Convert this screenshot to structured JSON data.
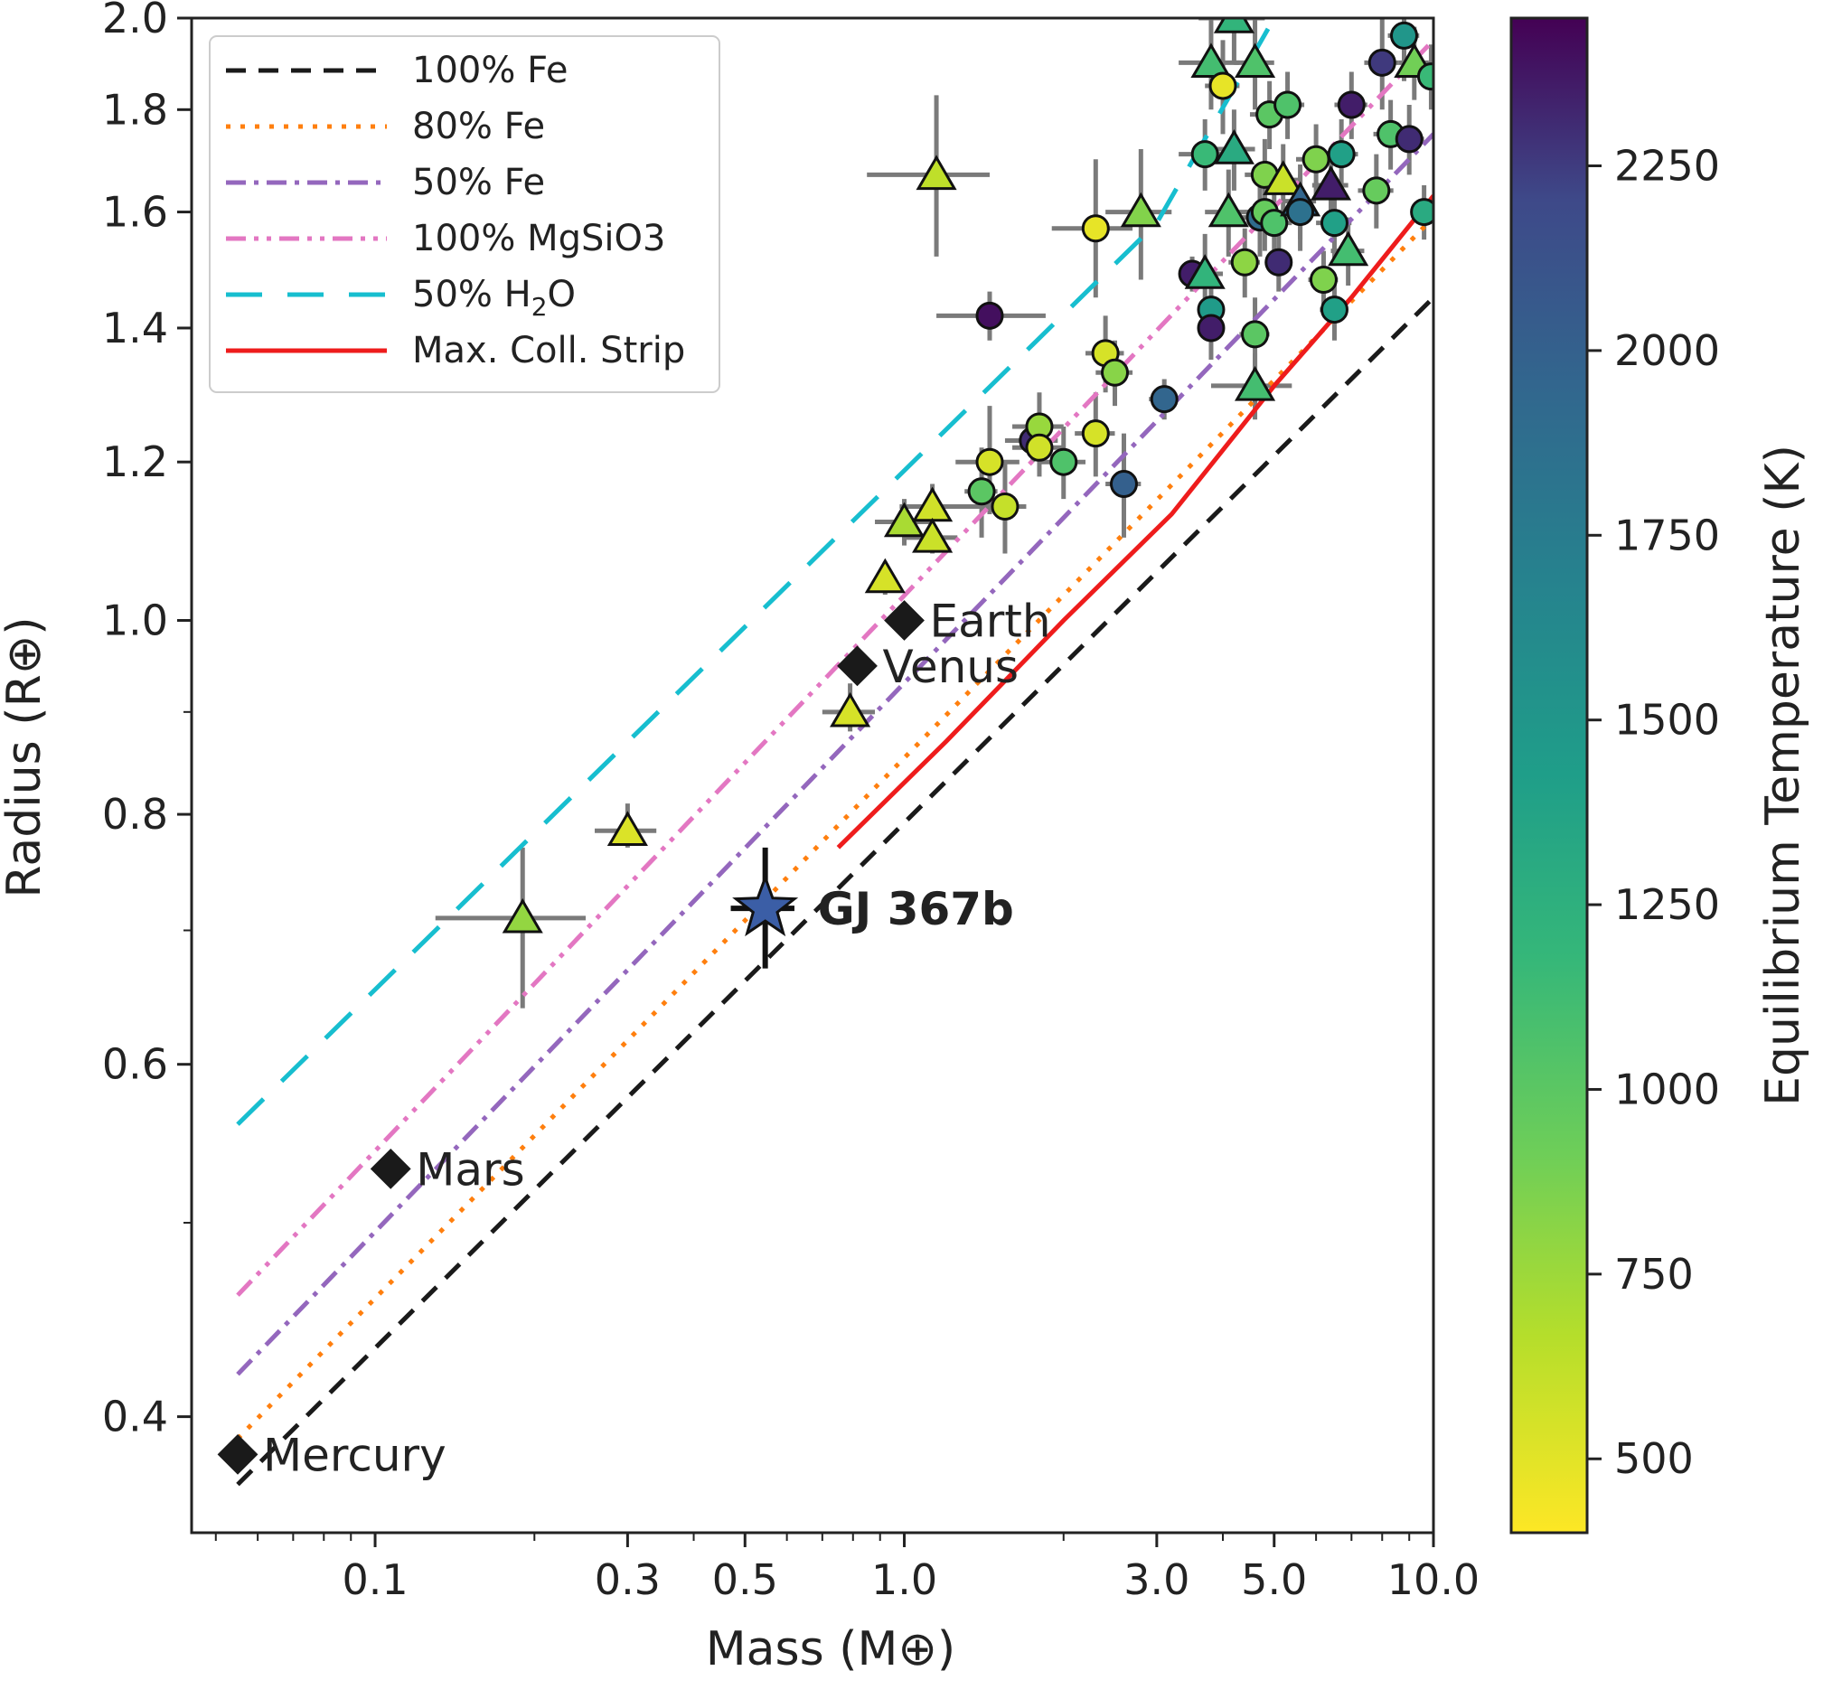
{
  "chart_data": {
    "type": "scatter",
    "xlabel": "Mass (M⊕)",
    "ylabel": "Radius (R⊕)",
    "colorbar_label": "Equilibrium Temperature (K)",
    "x_scale": "log",
    "y_scale": "log",
    "xlim": [
      0.045,
      10.0
    ],
    "ylim": [
      0.35,
      2.0
    ],
    "x_ticks": [
      0.1,
      0.3,
      0.5,
      1.0,
      3.0,
      5.0,
      10.0
    ],
    "x_tick_labels": [
      "0.1",
      "0.3",
      "0.5",
      "1.0",
      "3.0",
      "5.0",
      "10.0"
    ],
    "y_ticks": [
      0.4,
      0.6,
      0.8,
      1.0,
      1.2,
      1.4,
      1.6,
      1.8,
      2.0
    ],
    "y_tick_labels": [
      "0.4",
      "0.6",
      "0.8",
      "1.0",
      "1.2",
      "1.4",
      "1.6",
      "1.8",
      "2.0"
    ],
    "colorbar_range": [
      400,
      2450
    ],
    "colorbar_ticks": [
      500,
      750,
      1000,
      1250,
      1500,
      1750,
      2000,
      2250
    ],
    "colorbar_tick_labels": [
      "500",
      "750",
      "1000",
      "1250",
      "1500",
      "1750",
      "2000",
      "2250"
    ],
    "legend_position": "top-left",
    "grid": false,
    "curves": [
      {
        "name": "100% Fe",
        "color": "#1a1a1a",
        "dash": "22,14",
        "width": 5,
        "points": [
          [
            0.055,
            0.37
          ],
          [
            10,
            1.45
          ]
        ]
      },
      {
        "name": "80% Fe",
        "color": "#ff7f0e",
        "dash": "5,11",
        "width": 5,
        "points": [
          [
            0.055,
            0.39
          ],
          [
            10,
            1.59
          ]
        ]
      },
      {
        "name": "50% Fe",
        "color": "#9467bd",
        "dash": "22,9,5,9",
        "width": 5,
        "points": [
          [
            0.055,
            0.42
          ],
          [
            10,
            1.75
          ]
        ]
      },
      {
        "name": "100% MgSiO3",
        "color": "#e377c2",
        "dash": "22,9,5,9,5,9",
        "width": 5,
        "points": [
          [
            0.055,
            0.46
          ],
          [
            10,
            1.95
          ]
        ]
      },
      {
        "name": "50% H₂O",
        "color": "#17becf",
        "dash": "40,28",
        "width": 5,
        "points": [
          [
            0.055,
            0.56
          ],
          [
            3,
            1.58
          ],
          [
            5,
            2.0
          ]
        ]
      },
      {
        "name": "Max. Coll. Strip",
        "color": "#ee1c1c",
        "dash": "",
        "width": 5,
        "points": [
          [
            0.75,
            0.77
          ],
          [
            1.2,
            0.87
          ],
          [
            2,
            1.0
          ],
          [
            3.2,
            1.13
          ],
          [
            5,
            1.31
          ],
          [
            7,
            1.45
          ],
          [
            10,
            1.63
          ]
        ]
      }
    ],
    "legend_entries": [
      {
        "label": "100% Fe"
      },
      {
        "label": "80% Fe"
      },
      {
        "label": "50% Fe"
      },
      {
        "label": "100% MgSiO3"
      },
      {
        "label_main": "50% H",
        "label_sub": "2",
        "label_tail": "O"
      },
      {
        "label": "Max. Coll. Strip"
      }
    ],
    "solar_planets": [
      {
        "name": "Mercury",
        "mass": 0.055,
        "radius": 0.383
      },
      {
        "name": "Mars",
        "mass": 0.107,
        "radius": 0.532
      },
      {
        "name": "Venus",
        "mass": 0.815,
        "radius": 0.949
      },
      {
        "name": "Earth",
        "mass": 1.0,
        "radius": 1.0
      }
    ],
    "highlight": {
      "name": "GJ 367b",
      "mass": 0.546,
      "radius": 0.718,
      "mass_err": [
        0.47,
        0.62
      ],
      "radius_err": [
        0.67,
        0.77
      ],
      "color": "#3b5ea6"
    },
    "exoplanets": [
      {
        "mass": 0.19,
        "radius": 0.71,
        "teq": 780,
        "marker": "triangle",
        "mass_err": [
          0.13,
          0.25
        ],
        "radius_err": [
          0.64,
          0.77
        ]
      },
      {
        "mass": 0.3,
        "radius": 0.785,
        "teq": 520,
        "marker": "triangle",
        "mass_err": [
          0.26,
          0.34
        ],
        "radius_err": [
          0.77,
          0.81
        ]
      },
      {
        "mass": 0.79,
        "radius": 0.9,
        "teq": 540,
        "marker": "triangle",
        "mass_err": [
          0.7,
          0.88
        ],
        "radius_err": [
          0.88,
          0.93
        ]
      },
      {
        "mass": 0.92,
        "radius": 1.05,
        "teq": 540,
        "marker": "triangle",
        "mass_err": [
          0.88,
          0.96
        ],
        "radius_err": [
          1.03,
          1.07
        ]
      },
      {
        "mass": 1.0,
        "radius": 1.12,
        "teq": 700,
        "marker": "triangle",
        "mass_err": [
          0.88,
          1.12
        ],
        "radius_err": [
          1.09,
          1.15
        ]
      },
      {
        "mass": 1.13,
        "radius": 1.14,
        "teq": 560,
        "marker": "triangle",
        "mass_err": [
          0.98,
          1.4
        ],
        "radius_err": [
          1.11,
          1.17
        ]
      },
      {
        "mass": 1.13,
        "radius": 1.1,
        "teq": 580,
        "marker": "triangle",
        "mass_err": [
          1.0,
          1.26
        ],
        "radius_err": [
          1.08,
          1.12
        ]
      },
      {
        "mass": 1.15,
        "radius": 1.67,
        "teq": 620,
        "marker": "triangle",
        "mass_err": [
          0.85,
          1.45
        ],
        "radius_err": [
          1.52,
          1.83
        ]
      },
      {
        "mass": 1.45,
        "radius": 1.42,
        "teq": 2400,
        "marker": "circle",
        "mass_err": [
          1.15,
          1.85
        ],
        "radius_err": [
          1.38,
          1.46
        ]
      },
      {
        "mass": 1.4,
        "radius": 1.16,
        "teq": 1000,
        "marker": "circle",
        "mass_err": [
          1.3,
          1.5
        ],
        "radius_err": [
          1.1,
          1.22
        ]
      },
      {
        "mass": 1.45,
        "radius": 1.2,
        "teq": 540,
        "marker": "circle",
        "mass_err": [
          1.25,
          1.65
        ],
        "radius_err": [
          1.13,
          1.28
        ]
      },
      {
        "mass": 1.55,
        "radius": 1.14,
        "teq": 600,
        "marker": "circle",
        "mass_err": [
          1.4,
          1.7
        ],
        "radius_err": [
          1.08,
          1.2
        ]
      },
      {
        "mass": 1.75,
        "radius": 1.23,
        "teq": 2300,
        "marker": "circle",
        "mass_err": [
          1.55,
          1.95
        ],
        "radius_err": [
          1.2,
          1.26
        ]
      },
      {
        "mass": 1.8,
        "radius": 1.25,
        "teq": 760,
        "marker": "circle",
        "mass_err": [
          1.6,
          2.0
        ],
        "radius_err": [
          1.2,
          1.3
        ]
      },
      {
        "mass": 1.8,
        "radius": 1.22,
        "teq": 560,
        "marker": "circle",
        "mass_err": [
          1.6,
          2.0
        ],
        "radius_err": [
          1.18,
          1.26
        ]
      },
      {
        "mass": 2.0,
        "radius": 1.2,
        "teq": 1050,
        "marker": "circle",
        "mass_err": [
          1.8,
          2.2
        ],
        "radius_err": [
          1.15,
          1.25
        ]
      },
      {
        "mass": 2.3,
        "radius": 1.24,
        "teq": 540,
        "marker": "circle",
        "mass_err": [
          2.1,
          2.5
        ],
        "radius_err": [
          1.18,
          1.3
        ]
      },
      {
        "mass": 2.4,
        "radius": 1.36,
        "teq": 540,
        "marker": "circle",
        "mass_err": [
          2.2,
          2.6
        ],
        "radius_err": [
          1.3,
          1.42
        ]
      },
      {
        "mass": 2.5,
        "radius": 1.33,
        "teq": 820,
        "marker": "circle",
        "mass_err": [
          2.3,
          2.7
        ],
        "radius_err": [
          1.28,
          1.38
        ]
      },
      {
        "mass": 2.3,
        "radius": 1.57,
        "teq": 480,
        "marker": "circle",
        "mass_err": [
          1.9,
          2.7
        ],
        "radius_err": [
          1.45,
          1.7
        ]
      },
      {
        "mass": 2.6,
        "radius": 1.17,
        "teq": 2000,
        "marker": "circle",
        "mass_err": [
          2.4,
          2.8
        ],
        "radius_err": [
          1.1,
          1.24
        ]
      },
      {
        "mass": 2.8,
        "radius": 1.6,
        "teq": 840,
        "marker": "triangle",
        "mass_err": [
          2.4,
          3.2
        ],
        "radius_err": [
          1.48,
          1.72
        ]
      },
      {
        "mass": 3.1,
        "radius": 1.29,
        "teq": 1950,
        "marker": "circle",
        "mass_err": [
          2.9,
          3.3
        ],
        "radius_err": [
          1.26,
          1.32
        ]
      },
      {
        "mass": 3.5,
        "radius": 1.49,
        "teq": 2350,
        "marker": "circle",
        "mass_err": [
          3.3,
          3.7
        ],
        "radius_err": [
          1.46,
          1.52
        ]
      },
      {
        "mass": 3.7,
        "radius": 1.71,
        "teq": 1150,
        "marker": "circle",
        "mass_err": [
          3.3,
          4.1
        ],
        "radius_err": [
          1.64,
          1.78
        ]
      },
      {
        "mass": 3.7,
        "radius": 1.49,
        "teq": 1200,
        "marker": "triangle",
        "mass_err": [
          3.4,
          4.0
        ],
        "radius_err": [
          1.42,
          1.56
        ]
      },
      {
        "mass": 3.8,
        "radius": 1.43,
        "teq": 1450,
        "marker": "circle",
        "mass_err": [
          3.6,
          4.0
        ],
        "radius_err": [
          1.38,
          1.48
        ]
      },
      {
        "mass": 3.8,
        "radius": 1.4,
        "teq": 2350,
        "marker": "circle",
        "mass_err": [
          3.6,
          4.0
        ],
        "radius_err": [
          1.35,
          1.45
        ]
      },
      {
        "mass": 3.8,
        "radius": 1.9,
        "teq": 1100,
        "marker": "triangle",
        "mass_err": [
          3.3,
          4.3
        ],
        "radius_err": [
          1.8,
          2.0
        ]
      },
      {
        "mass": 4.0,
        "radius": 1.85,
        "teq": 480,
        "marker": "circle",
        "mass_err": [
          3.7,
          4.3
        ],
        "radius_err": [
          1.75,
          1.95
        ]
      },
      {
        "mass": 4.1,
        "radius": 1.6,
        "teq": 1050,
        "marker": "triangle",
        "mass_err": [
          3.7,
          4.5
        ],
        "radius_err": [
          1.52,
          1.68
        ]
      },
      {
        "mass": 4.2,
        "radius": 1.72,
        "teq": 1300,
        "marker": "triangle",
        "mass_err": [
          3.8,
          4.6
        ],
        "radius_err": [
          1.64,
          1.8
        ]
      },
      {
        "mass": 4.2,
        "radius": 2.0,
        "teq": 1200,
        "marker": "triangle",
        "mass_err": [
          3.6,
          4.8
        ],
        "radius_err": [
          1.9,
          2.0
        ]
      },
      {
        "mass": 4.4,
        "radius": 1.51,
        "teq": 800,
        "marker": "circle",
        "mass_err": [
          4.1,
          4.7
        ],
        "radius_err": [
          1.45,
          1.57
        ]
      },
      {
        "mass": 4.6,
        "radius": 1.9,
        "teq": 1050,
        "marker": "triangle",
        "mass_err": [
          4.2,
          5.0
        ],
        "radius_err": [
          1.8,
          2.0
        ]
      },
      {
        "mass": 4.6,
        "radius": 1.39,
        "teq": 1000,
        "marker": "circle",
        "mass_err": [
          4.3,
          4.9
        ],
        "radius_err": [
          1.33,
          1.45
        ]
      },
      {
        "mass": 4.6,
        "radius": 1.31,
        "teq": 1100,
        "marker": "triangle",
        "mass_err": [
          3.8,
          5.4
        ],
        "radius_err": [
          1.26,
          1.36
        ]
      },
      {
        "mass": 4.7,
        "radius": 1.59,
        "teq": 1900,
        "marker": "circle",
        "mass_err": [
          4.3,
          5.1
        ],
        "radius_err": [
          1.52,
          1.66
        ]
      },
      {
        "mass": 4.8,
        "radius": 1.67,
        "teq": 850,
        "marker": "circle",
        "mass_err": [
          4.4,
          5.2
        ],
        "radius_err": [
          1.6,
          1.74
        ]
      },
      {
        "mass": 4.8,
        "radius": 1.6,
        "teq": 950,
        "marker": "circle",
        "mass_err": [
          4.4,
          5.2
        ],
        "radius_err": [
          1.53,
          1.67
        ]
      },
      {
        "mass": 4.9,
        "radius": 1.79,
        "teq": 1000,
        "marker": "circle",
        "mass_err": [
          4.5,
          5.3
        ],
        "radius_err": [
          1.72,
          1.86
        ]
      },
      {
        "mass": 5.0,
        "radius": 1.58,
        "teq": 1050,
        "marker": "circle",
        "mass_err": [
          4.6,
          5.4
        ],
        "radius_err": [
          1.51,
          1.65
        ]
      },
      {
        "mass": 5.1,
        "radius": 1.51,
        "teq": 2300,
        "marker": "circle",
        "mass_err": [
          4.8,
          5.4
        ],
        "radius_err": [
          1.46,
          1.56
        ]
      },
      {
        "mass": 5.2,
        "radius": 1.66,
        "teq": 580,
        "marker": "triangle",
        "mass_err": [
          4.8,
          5.6
        ],
        "radius_err": [
          1.59,
          1.73
        ]
      },
      {
        "mass": 5.3,
        "radius": 1.81,
        "teq": 1050,
        "marker": "circle",
        "mass_err": [
          4.9,
          5.7
        ],
        "radius_err": [
          1.74,
          1.88
        ]
      },
      {
        "mass": 5.6,
        "radius": 1.62,
        "teq": 1950,
        "marker": "triangle",
        "mass_err": [
          5.2,
          6.0
        ],
        "radius_err": [
          1.55,
          1.69
        ]
      },
      {
        "mass": 5.6,
        "radius": 1.6,
        "teq": 1850,
        "marker": "circle",
        "mass_err": [
          5.2,
          6.0
        ],
        "radius_err": [
          1.53,
          1.67
        ]
      },
      {
        "mass": 6.0,
        "radius": 1.7,
        "teq": 850,
        "marker": "circle",
        "mass_err": [
          5.5,
          6.5
        ],
        "radius_err": [
          1.63,
          1.77
        ]
      },
      {
        "mass": 6.2,
        "radius": 1.48,
        "teq": 850,
        "marker": "circle",
        "mass_err": [
          5.8,
          6.6
        ],
        "radius_err": [
          1.43,
          1.53
        ]
      },
      {
        "mass": 6.4,
        "radius": 1.65,
        "teq": 2350,
        "marker": "triangle",
        "mass_err": [
          5.9,
          6.9
        ],
        "radius_err": [
          1.58,
          1.72
        ]
      },
      {
        "mass": 6.5,
        "radius": 1.43,
        "teq": 1400,
        "marker": "circle",
        "mass_err": [
          6.1,
          6.9
        ],
        "radius_err": [
          1.38,
          1.48
        ]
      },
      {
        "mass": 6.5,
        "radius": 1.58,
        "teq": 1400,
        "marker": "circle",
        "mass_err": [
          6.0,
          7.0
        ],
        "radius_err": [
          1.51,
          1.65
        ]
      },
      {
        "mass": 6.7,
        "radius": 1.71,
        "teq": 1400,
        "marker": "circle",
        "mass_err": [
          6.2,
          7.2
        ],
        "radius_err": [
          1.64,
          1.78
        ]
      },
      {
        "mass": 6.9,
        "radius": 1.53,
        "teq": 1100,
        "marker": "triangle",
        "mass_err": [
          6.4,
          7.4
        ],
        "radius_err": [
          1.47,
          1.59
        ]
      },
      {
        "mass": 7.0,
        "radius": 1.81,
        "teq": 2350,
        "marker": "circle",
        "mass_err": [
          6.5,
          7.5
        ],
        "radius_err": [
          1.74,
          1.88
        ]
      },
      {
        "mass": 7.8,
        "radius": 1.64,
        "teq": 950,
        "marker": "circle",
        "mass_err": [
          7.2,
          8.4
        ],
        "radius_err": [
          1.57,
          1.71
        ]
      },
      {
        "mass": 8.0,
        "radius": 1.9,
        "teq": 2250,
        "marker": "circle",
        "mass_err": [
          7.4,
          8.6
        ],
        "radius_err": [
          1.8,
          2.0
        ]
      },
      {
        "mass": 8.3,
        "radius": 1.75,
        "teq": 1050,
        "marker": "circle",
        "mass_err": [
          7.7,
          8.9
        ],
        "radius_err": [
          1.68,
          1.82
        ]
      },
      {
        "mass": 8.8,
        "radius": 1.96,
        "teq": 1500,
        "marker": "circle",
        "mass_err": [
          8.2,
          9.4
        ],
        "radius_err": [
          1.86,
          2.0
        ]
      },
      {
        "mass": 9.0,
        "radius": 1.74,
        "teq": 2300,
        "marker": "circle",
        "mass_err": [
          8.4,
          9.6
        ],
        "radius_err": [
          1.67,
          1.81
        ]
      },
      {
        "mass": 9.2,
        "radius": 1.9,
        "teq": 900,
        "marker": "triangle",
        "mass_err": [
          8.6,
          9.8
        ],
        "radius_err": [
          1.82,
          1.98
        ]
      },
      {
        "mass": 9.6,
        "radius": 1.6,
        "teq": 1300,
        "marker": "circle",
        "mass_err": [
          9.2,
          10.0
        ],
        "radius_err": [
          1.55,
          1.65
        ]
      },
      {
        "mass": 9.9,
        "radius": 1.87,
        "teq": 1150,
        "marker": "circle",
        "mass_err": [
          9.5,
          10.0
        ],
        "radius_err": [
          1.8,
          1.94
        ]
      }
    ]
  }
}
